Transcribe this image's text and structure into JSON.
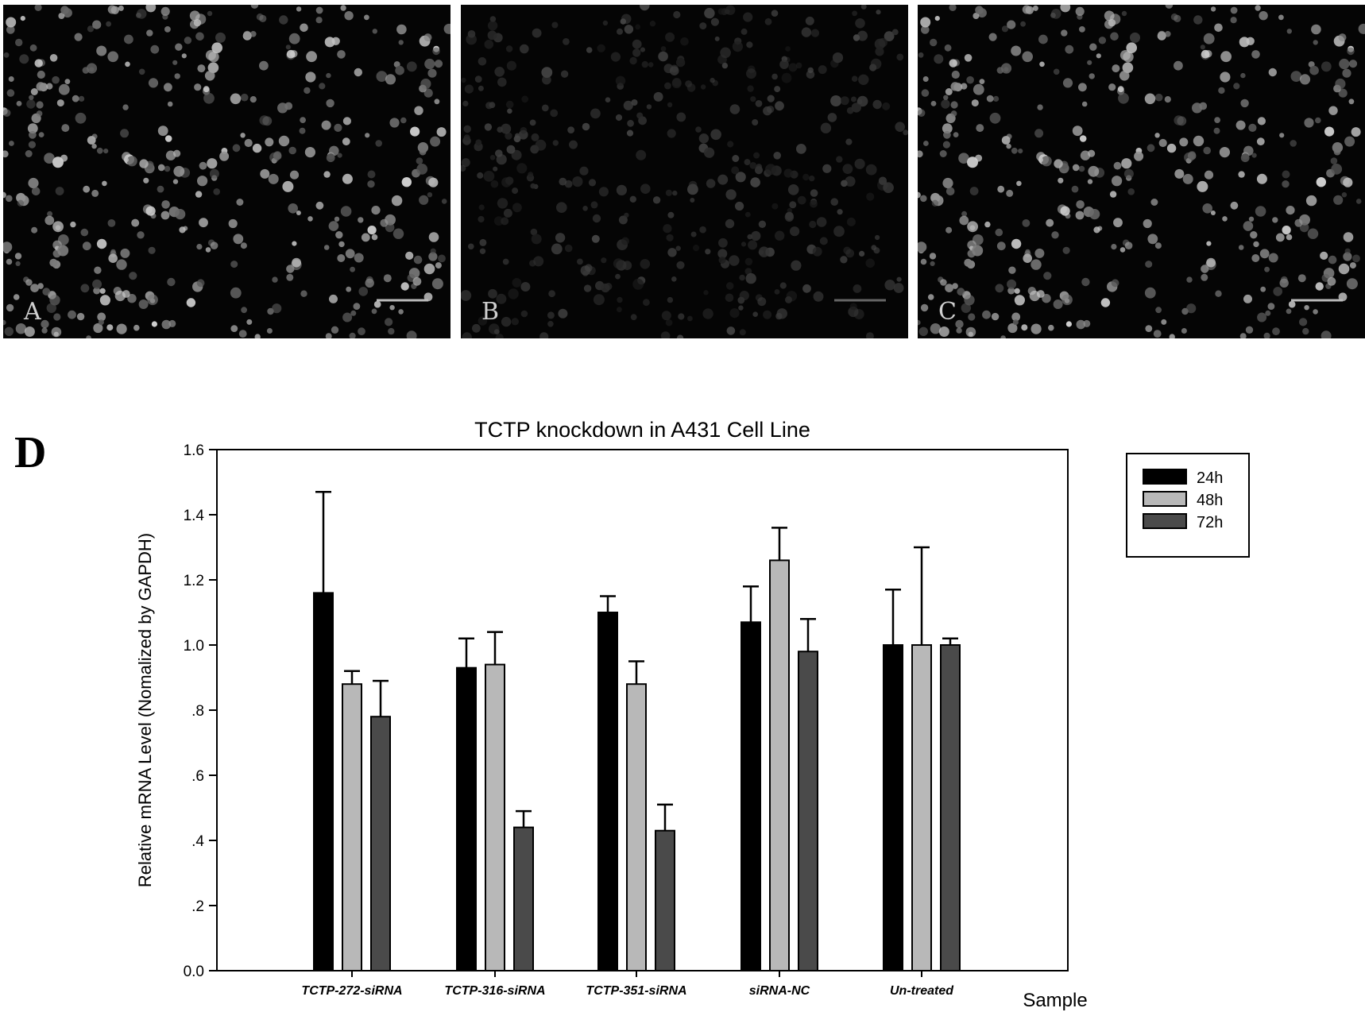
{
  "figure": {
    "panels": [
      {
        "id": "A",
        "label": "A",
        "brightness": "bright",
        "scale_bar": true
      },
      {
        "id": "B",
        "label": "B",
        "brightness": "dim",
        "scale_bar": true
      },
      {
        "id": "C",
        "label": "C",
        "brightness": "bright",
        "scale_bar": true
      }
    ],
    "chart_panel_label": "D"
  },
  "chart_data": {
    "type": "bar",
    "title": "TCTP knockdown in  A431  Cell Line",
    "xlabel": "Sample",
    "ylabel": "Relative mRNA Level (Nomalized by GAPDH)",
    "ylim": [
      0,
      1.6
    ],
    "yticks": [
      0,
      0.2,
      0.4,
      0.6,
      0.8,
      1.0,
      1.2,
      1.4,
      1.6
    ],
    "ytick_labels": [
      "0.0",
      ".2",
      ".4",
      ".6",
      ".8",
      "1.0",
      "1.2",
      "1.4",
      "1.6"
    ],
    "categories": [
      "TCTP-272-siRNA",
      "TCTP-316-siRNA",
      "TCTP-351-siRNA",
      "siRNA-NC",
      "Un-treated"
    ],
    "series": [
      {
        "name": "24h",
        "color": "#000000",
        "values": [
          1.16,
          0.93,
          1.1,
          1.07,
          1.0
        ],
        "errors": [
          0.31,
          0.09,
          0.05,
          0.11,
          0.17
        ]
      },
      {
        "name": "48h",
        "color": "#b8b8b8",
        "values": [
          0.88,
          0.94,
          0.88,
          1.26,
          1.0
        ],
        "errors": [
          0.04,
          0.1,
          0.07,
          0.1,
          0.3
        ]
      },
      {
        "name": "72h",
        "color": "#4a4a4a",
        "values": [
          0.78,
          0.44,
          0.43,
          0.98,
          1.0
        ],
        "errors": [
          0.11,
          0.05,
          0.08,
          0.1,
          0.02
        ]
      }
    ],
    "legend_position": "top-right outside",
    "grid": false
  }
}
